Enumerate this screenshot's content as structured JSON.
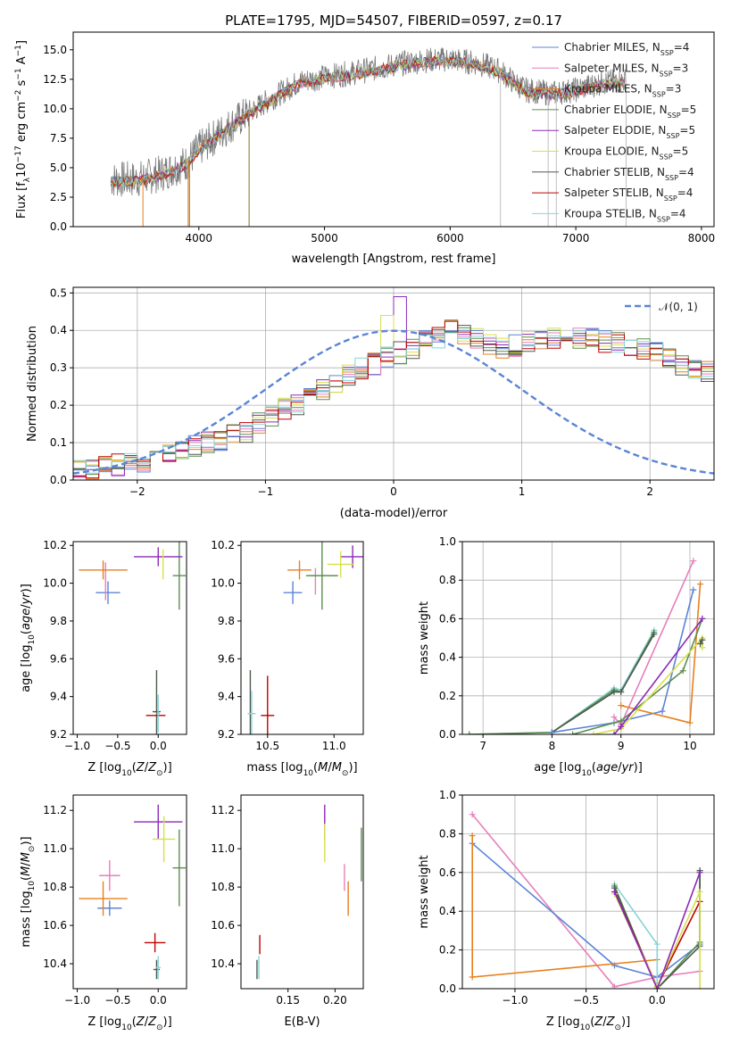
{
  "figure_title": "PLATE=1795, MJD=54507, FIBERID=0597, z=0.17",
  "series_colors": [
    "#6a8fd8",
    "#e77fc0",
    "#94c5e0",
    "#4e8a44",
    "#8c2ab8",
    "#d8e35a",
    "#303030",
    "#c00000",
    "#8fd9b0"
  ],
  "model_colors": [
    "#5b84d6",
    "#e67fbd",
    "#e6801e",
    "#5a8f4e",
    "#8c2ab8",
    "#d6e04a",
    "#4e5a4e",
    "#c00000",
    "#88d3d8"
  ],
  "chart_data": [
    {
      "id": "spectrum",
      "type": "line",
      "title": "PLATE=1795, MJD=54507, FIBERID=0597, z=0.17",
      "xlabel": "wavelength [Angstrom, rest frame]",
      "ylabel_html": "Flux [fλ10⁻¹⁷ erg cm⁻² s⁻¹ A⁻¹]",
      "xlim": [
        3000,
        8100
      ],
      "ylim": [
        0,
        16.5
      ],
      "xticks": [
        4000,
        5000,
        6000,
        7000,
        8000
      ],
      "yticks": [
        0.0,
        2.5,
        5.0,
        7.5,
        10.0,
        12.5,
        15.0
      ],
      "ytick_labels": [
        "0.0",
        "2.5",
        "5.0",
        "7.5",
        "10.0",
        "12.5",
        "15.0"
      ],
      "legend_position": "upper-right",
      "legend": [
        {
          "model": "Chabrier MILES",
          "n": "4"
        },
        {
          "model": "Salpeter MILES",
          "n": "3"
        },
        {
          "model": "Kroupa MILES",
          "n": "3"
        },
        {
          "model": "Chabrier ELODIE",
          "n": "5"
        },
        {
          "model": "Salpeter ELODIE",
          "n": "5"
        },
        {
          "model": "Kroupa ELODIE",
          "n": "5"
        },
        {
          "model": "Chabrier STELIB",
          "n": "4"
        },
        {
          "model": "Salpeter STELIB",
          "n": "4"
        },
        {
          "model": "Kroupa STELIB",
          "n": "4"
        }
      ],
      "legend_label_prefix": "N",
      "legend_label_sub": "SSP",
      "continuum": [
        [
          3300,
          4.0
        ],
        [
          3500,
          4.0
        ],
        [
          3700,
          4.5
        ],
        [
          3900,
          5.4
        ],
        [
          4000,
          6.6
        ],
        [
          4200,
          8.2
        ],
        [
          4400,
          9.7
        ],
        [
          4600,
          11.0
        ],
        [
          4800,
          12.3
        ],
        [
          5000,
          12.7
        ],
        [
          5200,
          13.0
        ],
        [
          5400,
          13.4
        ],
        [
          5600,
          13.8
        ],
        [
          5800,
          14.1
        ],
        [
          6000,
          14.2
        ],
        [
          6200,
          13.9
        ],
        [
          6300,
          13.6
        ],
        [
          6400,
          13.2
        ],
        [
          6500,
          12.3
        ],
        [
          6600,
          11.6
        ],
        [
          6800,
          11.3
        ],
        [
          7000,
          11.6
        ],
        [
          7200,
          12.2
        ],
        [
          7400,
          12.4
        ]
      ],
      "data_wavelength_range": [
        3300,
        7400
      ],
      "spikes_down": [
        3555,
        3915,
        3925,
        4400,
        6400,
        6780,
        6845,
        7400
      ],
      "spikes_up": [
        3880,
        3910,
        3920
      ]
    },
    {
      "id": "residuals",
      "type": "histogram",
      "xlabel": "(data-model)/error",
      "ylabel": "Normed distribution",
      "xlim": [
        -2.5,
        2.5
      ],
      "ylim": [
        0,
        0.515
      ],
      "xticks": [
        -2,
        -1,
        0,
        1,
        2
      ],
      "xtick_labels": [
        "−2",
        "−1",
        "0",
        "1",
        "2"
      ],
      "yticks": [
        0.0,
        0.1,
        0.2,
        0.3,
        0.4,
        0.5
      ],
      "ytick_labels": [
        "0.0",
        "0.1",
        "0.2",
        "0.3",
        "0.4",
        "0.5"
      ],
      "grid": true,
      "bin_width": 0.1,
      "reference_curve": {
        "name": "𝒩(0, 1)",
        "mean": 0,
        "sigma": 1
      },
      "legend_position": "upper-right",
      "bin_centers_start": -2.45,
      "base_profile": [
        0.03,
        0.03,
        0.04,
        0.04,
        0.05,
        0.05,
        0.06,
        0.07,
        0.08,
        0.09,
        0.1,
        0.1,
        0.12,
        0.13,
        0.15,
        0.17,
        0.19,
        0.2,
        0.23,
        0.24,
        0.26,
        0.28,
        0.3,
        0.31,
        0.33,
        0.34,
        0.35,
        0.37,
        0.38,
        0.4,
        0.39,
        0.38,
        0.36,
        0.35,
        0.36,
        0.37,
        0.37,
        0.38,
        0.39,
        0.38,
        0.38,
        0.37,
        0.37,
        0.36,
        0.35,
        0.34,
        0.33,
        0.31,
        0.3,
        0.29,
        0.28,
        0.27,
        0.26,
        0.24,
        0.23,
        0.22,
        0.2,
        0.19,
        0.17,
        0.16,
        0.15,
        0.13,
        0.12,
        0.11,
        0.1,
        0.1,
        0.09,
        0.08,
        0.08,
        0.08,
        0.07,
        0.07,
        0.07,
        0.07,
        0.07,
        0.08,
        0.08,
        0.09,
        0.09,
        0.1,
        0.1,
        0.1,
        0.11,
        0.11,
        0.12,
        0.12,
        0.12,
        0.11,
        0.11,
        0.11,
        0.1,
        0.1,
        0.1,
        0.1,
        0.11,
        0.11,
        0.12,
        0.12,
        0.12,
        0.12
      ],
      "peak_values": {
        "salpeter_elodie_at_0": 0.49,
        "kroupa_elodie_at_0": 0.44
      }
    },
    {
      "id": "age_vs_Z",
      "type": "errorbar",
      "xlabel": "Z [log10(Z/Z⊙)]",
      "ylabel": "age  [log10(age/yr)]",
      "xlim": [
        -1.05,
        0.35
      ],
      "ylim": [
        9.2,
        10.22
      ],
      "xticks": [
        -1.0,
        -0.5,
        0.0
      ],
      "xtick_labels": [
        "−1.0",
        "−0.5",
        "0.0"
      ],
      "yticks": [
        9.2,
        9.4,
        9.6,
        9.8,
        10.0,
        10.2
      ],
      "ytick_labels": [
        "9.2",
        "9.4",
        "9.6",
        "9.8",
        "10.0",
        "10.2"
      ],
      "points": [
        {
          "x": -0.62,
          "y": 9.95,
          "xerr": 0.15,
          "yerr": 0.06,
          "c": 0
        },
        {
          "x": -0.65,
          "y": 10.01,
          "xerr": 0.0,
          "yerr": 0.1,
          "c": 1
        },
        {
          "x": -0.68,
          "y": 10.07,
          "xerr": 0.3,
          "yerr": 0.05,
          "c": 2
        },
        {
          "x": 0.26,
          "y": 10.04,
          "xerr": 0.08,
          "yerr": 0.18,
          "c": 3
        },
        {
          "x": 0.0,
          "y": 10.14,
          "xerr": 0.3,
          "yerr": 0.05,
          "c": 4
        },
        {
          "x": 0.06,
          "y": 10.1,
          "xerr": 0.0,
          "yerr": 0.08,
          "c": 5
        },
        {
          "x": -0.02,
          "y": 9.32,
          "xerr": 0.05,
          "yerr": 0.22,
          "c": 6
        },
        {
          "x": -0.03,
          "y": 9.3,
          "xerr": 0.12,
          "yerr": 0.0,
          "c": 7
        },
        {
          "x": 0.0,
          "y": 9.31,
          "xerr": 0.02,
          "yerr": 0.1,
          "c": 8
        }
      ]
    },
    {
      "id": "age_vs_mass",
      "type": "errorbar",
      "xlabel": "mass [log10(M/M⊙)]",
      "xlim": [
        10.3,
        11.22
      ],
      "ylim": [
        9.2,
        10.22
      ],
      "xticks": [
        10.5,
        11.0
      ],
      "xtick_labels": [
        "10.5",
        "11.0"
      ],
      "yticks": [
        9.2,
        9.4,
        9.6,
        9.8,
        10.0,
        10.2
      ],
      "ytick_labels": [
        "9.2",
        "9.4",
        "9.6",
        "9.8",
        "10.0",
        "10.2"
      ],
      "points": [
        {
          "x": 10.69,
          "y": 9.95,
          "xerr": 0.07,
          "yerr": 0.06,
          "c": 0
        },
        {
          "x": 10.86,
          "y": 10.01,
          "xerr": 0.0,
          "yerr": 0.07,
          "c": 1
        },
        {
          "x": 10.74,
          "y": 10.07,
          "xerr": 0.09,
          "yerr": 0.05,
          "c": 2
        },
        {
          "x": 10.91,
          "y": 10.04,
          "xerr": 0.12,
          "yerr": 0.18,
          "c": 3
        },
        {
          "x": 11.14,
          "y": 10.14,
          "xerr": 0.09,
          "yerr": 0.06,
          "c": 4
        },
        {
          "x": 11.05,
          "y": 10.1,
          "xerr": 0.1,
          "yerr": 0.07,
          "c": 5
        },
        {
          "x": 10.37,
          "y": 9.32,
          "xerr": 0.0,
          "yerr": 0.22,
          "c": 6
        },
        {
          "x": 10.5,
          "y": 9.3,
          "xerr": 0.05,
          "yerr": 0.21,
          "c": 7
        },
        {
          "x": 10.38,
          "y": 9.31,
          "xerr": 0.03,
          "yerr": 0.12,
          "c": 8
        }
      ]
    },
    {
      "id": "weight_vs_age",
      "type": "line",
      "xlabel": "age  [log10(age/yr)]",
      "ylabel": "mass weight",
      "xlim": [
        6.7,
        10.35
      ],
      "ylim": [
        0,
        1.0
      ],
      "xticks": [
        7,
        8,
        9,
        10
      ],
      "xtick_labels": [
        "7",
        "8",
        "9",
        "10"
      ],
      "yticks": [
        0.0,
        0.2,
        0.4,
        0.6,
        0.8,
        1.0
      ],
      "ytick_labels": [
        "0.0",
        "0.2",
        "0.4",
        "0.6",
        "0.8",
        "1.0"
      ],
      "grid": true,
      "series": [
        {
          "c": 8,
          "x": [
            6.8,
            8.0,
            8.9,
            9.0,
            9.48
          ],
          "y": [
            0.0,
            0.01,
            0.24,
            0.23,
            0.54
          ]
        },
        {
          "c": 3,
          "x": [
            6.8,
            8.0,
            8.9,
            9.0,
            9.48
          ],
          "y": [
            0.0,
            0.01,
            0.23,
            0.22,
            0.53
          ]
        },
        {
          "c": 6,
          "x": [
            8.0,
            8.9,
            9.0,
            9.48
          ],
          "y": [
            0.01,
            0.22,
            0.22,
            0.52
          ]
        },
        {
          "c": 0,
          "x": [
            8.0,
            8.9,
            9.6,
            10.05
          ],
          "y": [
            0.01,
            0.06,
            0.12,
            0.75
          ]
        },
        {
          "c": 1,
          "x": [
            8.9,
            9.0,
            10.05
          ],
          "y": [
            0.09,
            0.05,
            0.9
          ]
        },
        {
          "c": 2,
          "x": [
            9.0,
            10.0,
            10.15
          ],
          "y": [
            0.15,
            0.06,
            0.78
          ]
        },
        {
          "c": 3,
          "x": [
            8.3,
            9.0,
            9.9,
            10.18
          ],
          "y": [
            0.0,
            0.07,
            0.33,
            0.6
          ]
        },
        {
          "c": 5,
          "x": [
            8.6,
            9.0,
            10.18,
            10.18
          ],
          "y": [
            0.0,
            0.03,
            0.5,
            0.45
          ]
        },
        {
          "c": 4,
          "x": [
            8.9,
            9.0,
            10.18
          ],
          "y": [
            0.0,
            0.04,
            0.6
          ]
        },
        {
          "c": 6,
          "x": [
            10.15,
            10.18
          ],
          "y": [
            0.47,
            0.49
          ]
        }
      ]
    },
    {
      "id": "mass_vs_Z",
      "type": "errorbar",
      "xlabel": "Z [log10(Z/Z⊙)]",
      "ylabel": "mass [log10(M/M⊙)]",
      "xlim": [
        -1.05,
        0.35
      ],
      "ylim": [
        10.27,
        11.28
      ],
      "xticks": [
        -1.0,
        -0.5,
        0.0
      ],
      "xtick_labels": [
        "−1.0",
        "−0.5",
        "0.0"
      ],
      "yticks": [
        10.4,
        10.6,
        10.8,
        11.0,
        11.2
      ],
      "ytick_labels": [
        "10.4",
        "10.6",
        "10.8",
        "11.0",
        "11.2"
      ],
      "points": [
        {
          "x": -0.6,
          "y": 10.69,
          "xerr": 0.15,
          "yerr": 0.04,
          "c": 0
        },
        {
          "x": -0.6,
          "y": 10.86,
          "xerr": 0.13,
          "yerr": 0.08,
          "c": 1
        },
        {
          "x": -0.68,
          "y": 10.74,
          "xerr": 0.3,
          "yerr": 0.09,
          "c": 2
        },
        {
          "x": 0.26,
          "y": 10.9,
          "xerr": 0.08,
          "yerr": 0.2,
          "c": 3
        },
        {
          "x": 0.0,
          "y": 11.14,
          "xerr": 0.3,
          "yerr": 0.09,
          "c": 4
        },
        {
          "x": 0.07,
          "y": 11.05,
          "xerr": 0.14,
          "yerr": 0.12,
          "c": 5
        },
        {
          "x": -0.02,
          "y": 10.37,
          "xerr": 0.04,
          "yerr": 0.05,
          "c": 6
        },
        {
          "x": -0.04,
          "y": 10.51,
          "xerr": 0.13,
          "yerr": 0.05,
          "c": 7
        },
        {
          "x": 0.0,
          "y": 10.38,
          "xerr": 0.03,
          "yerr": 0.06,
          "c": 8
        }
      ]
    },
    {
      "id": "mass_vs_ebv",
      "type": "errorbar",
      "xlabel": "E(B-V)",
      "xlim": [
        0.1,
        0.23
      ],
      "ylim": [
        10.27,
        11.28
      ],
      "xticks": [
        0.15,
        0.2
      ],
      "xtick_labels": [
        "0.15",
        "0.20"
      ],
      "yticks": [
        10.4,
        10.6,
        10.8,
        11.0,
        11.2
      ],
      "ytick_labels": [
        "10.4",
        "10.6",
        "10.8",
        "11.0",
        "11.2"
      ],
      "points": [
        {
          "x": 0.189,
          "y": 11.14,
          "yerr": 0.09,
          "c": 4
        },
        {
          "x": 0.189,
          "y": 11.03,
          "yerr": 0.1,
          "c": 5
        },
        {
          "x": 0.228,
          "y": 10.97,
          "yerr": 0.14,
          "c": 3
        },
        {
          "x": 0.21,
          "y": 10.85,
          "yerr": 0.07,
          "c": 1
        },
        {
          "x": 0.214,
          "y": 10.74,
          "yerr": 0.09,
          "c": 2
        },
        {
          "x": 0.12,
          "y": 10.5,
          "yerr": 0.05,
          "c": 7
        },
        {
          "x": 0.117,
          "y": 10.37,
          "yerr": 0.05,
          "c": 6
        },
        {
          "x": 0.119,
          "y": 10.38,
          "yerr": 0.06,
          "c": 8
        }
      ]
    },
    {
      "id": "weight_vs_Z",
      "type": "line",
      "xlabel": "Z [log10(Z/Z⊙)]",
      "ylabel": "mass weight",
      "xlim": [
        -1.37,
        0.4
      ],
      "ylim": [
        0,
        1.0
      ],
      "xticks": [
        -1.0,
        -0.5,
        0.0
      ],
      "xtick_labels": [
        "−1.0",
        "−0.5",
        "0.0"
      ],
      "yticks": [
        0.0,
        0.2,
        0.4,
        0.6,
        0.8,
        1.0
      ],
      "ytick_labels": [
        "0.0",
        "0.2",
        "0.4",
        "0.6",
        "0.8",
        "1.0"
      ],
      "grid": true,
      "series": [
        {
          "c": 1,
          "x": [
            -1.3,
            -0.3,
            0.0,
            0.3
          ],
          "y": [
            0.9,
            0.01,
            0.06,
            0.09
          ]
        },
        {
          "c": 0,
          "x": [
            -1.3,
            -0.3,
            0.0,
            0.3
          ],
          "y": [
            0.75,
            0.12,
            0.06,
            0.23
          ]
        },
        {
          "c": 2,
          "x": [
            -1.3,
            -1.3,
            0.0
          ],
          "y": [
            0.79,
            0.06,
            0.15
          ]
        },
        {
          "c": 8,
          "x": [
            -0.3,
            0.0,
            0.0,
            0.3,
            0.3
          ],
          "y": [
            0.54,
            0.23,
            0.0,
            0.24,
            0.6
          ]
        },
        {
          "c": 3,
          "x": [
            -0.3,
            0.0,
            0.3,
            0.3
          ],
          "y": [
            0.53,
            0.0,
            0.24,
            0.61
          ]
        },
        {
          "c": 6,
          "x": [
            -0.3,
            0.0,
            0.3,
            0.3
          ],
          "y": [
            0.52,
            0.0,
            0.22,
            0.61
          ]
        },
        {
          "c": 7,
          "x": [
            -0.3,
            0.0,
            0.3
          ],
          "y": [
            0.5,
            0.01,
            0.45
          ]
        },
        {
          "c": 5,
          "x": [
            -0.3,
            0.0,
            0.3,
            0.3
          ],
          "y": [
            0.49,
            0.01,
            0.5,
            0.0
          ]
        },
        {
          "c": 4,
          "x": [
            -0.3,
            0.0,
            0.3
          ],
          "y": [
            0.5,
            0.0,
            0.6
          ]
        }
      ]
    }
  ]
}
